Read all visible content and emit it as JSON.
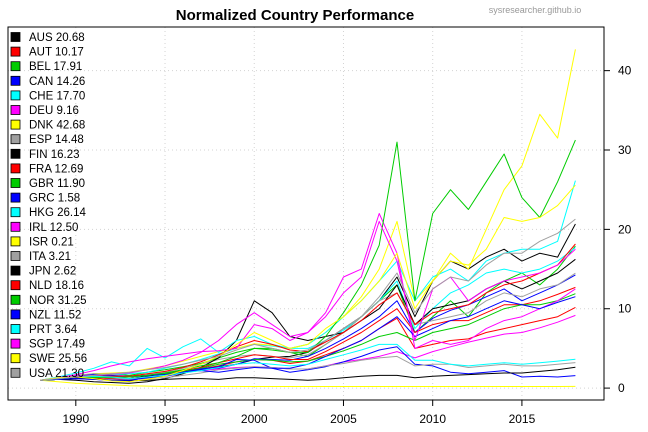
{
  "chart_data": {
    "type": "line",
    "title": "Normalized Country Performance",
    "watermark": "sysresearcher.github.io",
    "xlabel": "",
    "ylabel": "",
    "xlim": [
      1986.2,
      2019.6
    ],
    "ylim": [
      -1.5,
      45.5
    ],
    "x_ticks": [
      1990,
      1995,
      2000,
      2005,
      2010,
      2015
    ],
    "y_ticks": [
      0,
      10,
      20,
      30,
      40
    ],
    "y_axis_side": "right",
    "grid": true,
    "legend_position": "top-left",
    "x": [
      1988,
      1989,
      1990,
      1991,
      1992,
      1993,
      1994,
      1995,
      1996,
      1997,
      1998,
      1999,
      2000,
      2001,
      2002,
      2003,
      2004,
      2005,
      2006,
      2007,
      2008,
      2009,
      2010,
      2011,
      2012,
      2013,
      2014,
      2015,
      2016,
      2017,
      2018
    ],
    "series": [
      {
        "name": "AUS",
        "label": "AUS 20.68",
        "color": "#000000",
        "values": [
          1.0,
          1.1,
          1.3,
          1.5,
          1.4,
          1.2,
          1.5,
          1.8,
          2.0,
          2.4,
          2.7,
          3.0,
          3.6,
          3.9,
          4.0,
          4.5,
          6.0,
          7.5,
          9.0,
          11.0,
          14.0,
          9.0,
          13.5,
          16.0,
          15.0,
          16.5,
          17.5,
          16.0,
          17.0,
          16.5,
          20.68
        ]
      },
      {
        "name": "AUT",
        "label": "AUT 10.17",
        "color": "#FF0000",
        "values": [
          1.0,
          1.2,
          1.4,
          1.3,
          1.2,
          1.1,
          1.4,
          1.6,
          2.1,
          2.4,
          2.8,
          3.3,
          3.6,
          3.5,
          3.1,
          3.4,
          4.2,
          5.0,
          6.0,
          7.5,
          8.8,
          5.0,
          5.5,
          6.0,
          6.2,
          7.0,
          7.5,
          8.0,
          8.5,
          9.0,
          10.17
        ]
      },
      {
        "name": "BEL",
        "label": "BEL 17.91",
        "color": "#00CC00",
        "values": [
          1.0,
          1.3,
          1.5,
          1.8,
          1.8,
          1.6,
          2.0,
          2.3,
          2.7,
          3.1,
          3.8,
          4.5,
          5.0,
          4.8,
          4.5,
          4.0,
          5.5,
          7.0,
          9.0,
          11.0,
          13.0,
          7.0,
          9.0,
          11.0,
          9.0,
          12.0,
          13.5,
          14.5,
          13.0,
          15.0,
          17.91
        ]
      },
      {
        "name": "CAN",
        "label": "CAN 14.26",
        "color": "#0000FF",
        "values": [
          1.0,
          1.1,
          1.2,
          1.1,
          1.0,
          1.0,
          1.3,
          1.5,
          1.9,
          2.3,
          2.5,
          3.0,
          3.7,
          3.6,
          3.5,
          4.0,
          5.0,
          6.2,
          7.5,
          9.0,
          11.0,
          7.0,
          8.8,
          9.8,
          10.5,
          11.5,
          12.5,
          11.0,
          12.0,
          13.0,
          14.26
        ]
      },
      {
        "name": "CHE",
        "label": "CHE 17.70",
        "color": "#00FFFF",
        "values": [
          1.0,
          1.3,
          1.5,
          1.6,
          1.7,
          1.8,
          2.0,
          2.5,
          3.0,
          3.6,
          4.3,
          5.0,
          5.5,
          5.3,
          5.0,
          5.0,
          6.0,
          7.3,
          9.0,
          11.0,
          13.5,
          7.5,
          10.0,
          12.0,
          13.0,
          14.5,
          15.0,
          14.5,
          15.0,
          16.0,
          17.7
        ]
      },
      {
        "name": "DEU",
        "label": "DEU  9.16",
        "color": "#FF00FF",
        "values": [
          1.0,
          1.2,
          1.5,
          1.6,
          1.7,
          1.5,
          1.7,
          1.9,
          2.0,
          2.2,
          2.4,
          2.6,
          2.7,
          2.6,
          2.4,
          2.4,
          2.8,
          3.3,
          3.6,
          4.0,
          4.6,
          3.8,
          4.6,
          5.2,
          5.8,
          6.3,
          6.8,
          7.0,
          7.6,
          8.3,
          9.16
        ]
      },
      {
        "name": "DNK",
        "label": "DNK 42.68",
        "color": "#FFFF00",
        "values": [
          1.0,
          1.3,
          1.6,
          1.8,
          1.9,
          2.0,
          2.4,
          2.8,
          3.4,
          4.0,
          4.6,
          5.0,
          5.6,
          5.4,
          5.0,
          5.5,
          7.0,
          9.0,
          11.5,
          15.0,
          21.0,
          11.0,
          13.5,
          17.0,
          15.0,
          20.0,
          25.0,
          28.0,
          34.5,
          31.5,
          42.68
        ]
      },
      {
        "name": "ESP",
        "label": "ESP 14.48",
        "color": "#A0A0A0",
        "values": [
          1.0,
          1.3,
          1.6,
          1.8,
          1.7,
          1.4,
          1.7,
          2.0,
          2.5,
          3.0,
          3.6,
          4.0,
          4.2,
          4.0,
          3.8,
          4.2,
          5.5,
          7.0,
          9.0,
          11.0,
          12.0,
          8.0,
          8.5,
          9.0,
          9.5,
          11.0,
          12.0,
          11.5,
          12.5,
          13.0,
          14.48
        ]
      },
      {
        "name": "FIN",
        "label": "FIN 16.23",
        "color": "#000000",
        "values": [
          1.0,
          1.1,
          1.0,
          0.8,
          0.7,
          0.6,
          0.8,
          1.2,
          1.8,
          2.6,
          3.8,
          6.0,
          11.0,
          9.5,
          6.5,
          6.0,
          6.5,
          7.0,
          8.5,
          10.0,
          13.0,
          8.0,
          10.0,
          10.5,
          11.0,
          12.5,
          13.5,
          12.5,
          13.5,
          14.5,
          16.23
        ]
      },
      {
        "name": "FRA",
        "label": "FRA 12.69",
        "color": "#FF0000",
        "values": [
          1.0,
          1.2,
          1.4,
          1.5,
          1.5,
          1.4,
          1.6,
          1.8,
          2.2,
          2.6,
          3.2,
          3.7,
          4.2,
          4.0,
          3.6,
          3.6,
          4.6,
          5.8,
          7.0,
          8.5,
          10.0,
          7.0,
          8.0,
          8.5,
          8.5,
          9.5,
          10.5,
          10.5,
          11.0,
          11.8,
          12.69
        ]
      },
      {
        "name": "GBR",
        "label": "GBR 11.90",
        "color": "#00CC00",
        "values": [
          1.0,
          1.1,
          1.3,
          1.3,
          1.4,
          1.5,
          1.6,
          1.8,
          2.1,
          2.5,
          3.0,
          3.3,
          3.6,
          3.5,
          3.3,
          3.4,
          4.0,
          4.7,
          5.5,
          6.5,
          7.0,
          6.0,
          7.0,
          7.5,
          8.0,
          9.0,
          10.0,
          10.5,
          10.5,
          11.0,
          11.9
        ]
      },
      {
        "name": "GRC",
        "label": "GRC  1.58",
        "color": "#0000FF",
        "values": [
          1.0,
          1.1,
          1.5,
          1.7,
          1.6,
          1.4,
          1.6,
          1.7,
          2.0,
          2.4,
          2.7,
          3.6,
          3.5,
          2.5,
          2.0,
          2.3,
          2.7,
          3.3,
          4.0,
          4.8,
          5.2,
          3.0,
          2.8,
          2.0,
          1.8,
          2.0,
          2.2,
          1.4,
          1.5,
          1.4,
          1.58
        ]
      },
      {
        "name": "HKG",
        "label": "HKG 26.14",
        "color": "#00FFFF",
        "values": [
          1.0,
          1.4,
          1.9,
          2.5,
          3.3,
          2.8,
          5.0,
          3.8,
          5.2,
          6.2,
          4.5,
          6.0,
          6.5,
          5.5,
          5.0,
          5.5,
          7.0,
          9.0,
          11.0,
          13.5,
          16.0,
          11.0,
          14.0,
          15.0,
          13.5,
          16.0,
          17.0,
          17.5,
          17.5,
          18.5,
          26.14
        ]
      },
      {
        "name": "IRL",
        "label": "IRL 12.50",
        "color": "#FF00FF",
        "values": [
          1.0,
          1.2,
          1.5,
          1.6,
          1.8,
          1.9,
          2.3,
          2.8,
          3.5,
          4.5,
          6.0,
          8.0,
          9.5,
          8.0,
          6.5,
          7.0,
          9.5,
          14.0,
          15.0,
          22.0,
          17.0,
          5.0,
          6.0,
          5.5,
          6.0,
          7.5,
          8.5,
          9.0,
          10.0,
          11.0,
          12.5
        ]
      },
      {
        "name": "ISR",
        "label": "ISR  0.21",
        "color": "#FFFF00",
        "values": [
          1.0,
          0.8,
          0.6,
          0.5,
          0.4,
          0.3,
          0.25,
          0.2,
          0.2,
          0.2,
          0.2,
          0.2,
          0.2,
          0.2,
          0.2,
          0.2,
          0.2,
          0.2,
          0.2,
          0.2,
          0.2,
          0.2,
          0.2,
          0.2,
          0.2,
          0.2,
          0.2,
          0.2,
          0.2,
          0.2,
          0.21
        ]
      },
      {
        "name": "ITA",
        "label": "ITA  3.21",
        "color": "#A0A0A0",
        "values": [
          1.0,
          1.1,
          1.3,
          1.4,
          1.3,
          1.1,
          1.2,
          1.3,
          1.6,
          1.9,
          2.3,
          2.5,
          2.7,
          2.6,
          2.4,
          2.4,
          2.8,
          3.1,
          3.5,
          3.8,
          4.0,
          2.8,
          3.0,
          3.0,
          2.6,
          2.8,
          3.0,
          2.8,
          2.8,
          3.0,
          3.21
        ]
      },
      {
        "name": "JPN",
        "label": "JPN  2.62",
        "color": "#000000",
        "values": [
          1.0,
          1.2,
          1.3,
          1.2,
          1.0,
          0.9,
          1.0,
          1.1,
          1.2,
          1.2,
          1.1,
          1.3,
          1.3,
          1.2,
          1.1,
          1.0,
          1.1,
          1.3,
          1.5,
          1.6,
          1.6,
          1.3,
          1.5,
          1.6,
          1.7,
          1.8,
          1.9,
          1.9,
          2.1,
          2.3,
          2.62
        ]
      },
      {
        "name": "NLD",
        "label": "NLD 18.16",
        "color": "#FF0000",
        "values": [
          1.0,
          1.2,
          1.4,
          1.5,
          1.5,
          1.5,
          1.8,
          2.1,
          2.6,
          3.3,
          4.2,
          5.2,
          6.0,
          5.5,
          4.8,
          4.6,
          5.8,
          7.0,
          8.5,
          10.5,
          12.0,
          8.0,
          9.5,
          10.0,
          10.5,
          12.0,
          13.0,
          13.5,
          14.5,
          15.5,
          18.16
        ]
      },
      {
        "name": "NOR",
        "label": "NOR 31.25",
        "color": "#00CC00",
        "values": [
          1.0,
          1.2,
          1.4,
          1.4,
          1.3,
          1.4,
          1.6,
          1.9,
          2.3,
          2.8,
          3.2,
          4.0,
          5.0,
          5.0,
          4.5,
          4.5,
          6.5,
          9.5,
          13.0,
          18.0,
          31.0,
          11.0,
          22.0,
          25.0,
          22.5,
          26.0,
          29.5,
          24.0,
          21.5,
          26.0,
          31.25
        ]
      },
      {
        "name": "NZL",
        "label": "NZL 11.52",
        "color": "#0000FF",
        "values": [
          1.0,
          1.1,
          1.2,
          1.1,
          1.0,
          1.0,
          1.3,
          1.6,
          2.0,
          2.2,
          2.0,
          2.3,
          2.6,
          2.5,
          2.5,
          3.0,
          4.0,
          5.0,
          6.0,
          7.5,
          9.0,
          6.5,
          7.5,
          8.5,
          9.0,
          10.0,
          11.0,
          10.5,
          10.0,
          10.8,
          11.52
        ]
      },
      {
        "name": "PRT",
        "label": "PRT  3.64",
        "color": "#00FFFF",
        "values": [
          1.0,
          1.2,
          1.4,
          1.5,
          1.4,
          1.2,
          1.4,
          1.6,
          1.9,
          2.2,
          2.6,
          3.0,
          3.2,
          3.0,
          2.8,
          3.0,
          3.6,
          4.2,
          4.8,
          5.5,
          5.5,
          3.5,
          3.5,
          3.0,
          2.8,
          3.0,
          3.2,
          3.0,
          3.2,
          3.4,
          3.64
        ]
      },
      {
        "name": "SGP",
        "label": "SGP 17.49",
        "color": "#FF00FF",
        "values": [
          1.0,
          1.3,
          1.7,
          2.2,
          2.8,
          3.3,
          3.7,
          4.0,
          4.3,
          4.6,
          4.7,
          5.0,
          8.0,
          7.5,
          6.0,
          7.0,
          9.0,
          12.0,
          14.0,
          21.0,
          16.0,
          6.0,
          12.5,
          14.0,
          11.0,
          12.5,
          13.5,
          14.0,
          14.5,
          15.5,
          17.49
        ]
      },
      {
        "name": "SWE",
        "label": "SWE 25.56",
        "color": "#FFFF00",
        "values": [
          1.0,
          1.3,
          1.4,
          1.2,
          0.9,
          0.8,
          1.1,
          1.5,
          2.2,
          3.0,
          4.0,
          5.5,
          7.0,
          6.0,
          5.0,
          5.5,
          7.5,
          9.0,
          11.0,
          13.5,
          17.0,
          10.0,
          13.5,
          16.0,
          15.5,
          17.5,
          21.5,
          21.0,
          21.5,
          23.0,
          25.56
        ]
      },
      {
        "name": "USA",
        "label": "USA 21.30",
        "color": "#A0A0A0",
        "values": [
          1.0,
          1.2,
          1.4,
          1.6,
          1.8,
          2.0,
          2.3,
          2.6,
          3.0,
          3.5,
          4.0,
          4.8,
          5.5,
          5.0,
          4.5,
          4.8,
          6.0,
          7.5,
          9.0,
          11.5,
          14.5,
          9.5,
          12.5,
          14.0,
          13.5,
          15.5,
          17.0,
          17.0,
          18.5,
          19.5,
          21.3
        ]
      }
    ]
  }
}
